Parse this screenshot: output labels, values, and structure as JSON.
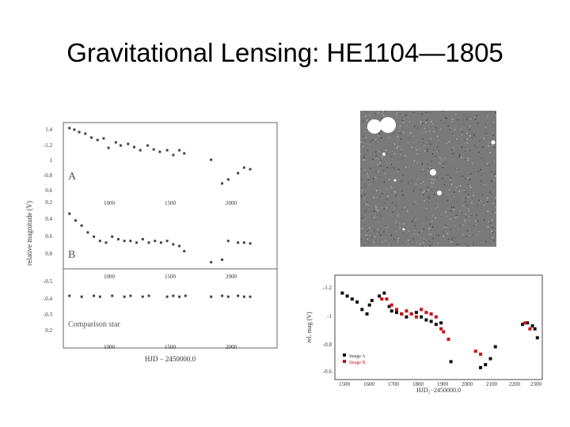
{
  "slide": {
    "title": "Gravitational Lensing: HE1104—1805"
  },
  "figure_left": {
    "ylabel": "relative magnitude (V)",
    "xlabel": "HJD − 2450000.0",
    "panel_a_label": "A",
    "panel_b_label": "B",
    "comparison_label": "Comparison star",
    "panel_a_ticks": [
      "1.4",
      "-1.2",
      "1",
      "-0.8",
      "0.6"
    ],
    "panel_b_ticks": [
      "0.2",
      "0.4",
      "0.6",
      "0.8"
    ],
    "panel_c_ticks": [
      "-0.5",
      "-0.4",
      "-0.3",
      "0.2"
    ],
    "xticks": [
      "1000",
      "1500",
      "2000"
    ]
  },
  "figure_right": {
    "ylabel": "rel. mag (V)",
    "xlabel": "HJD₂−2450000.0",
    "yticks": [
      "-1.2",
      "-1",
      "-0.8",
      "-0.6"
    ],
    "xticks": [
      "1500",
      "1600",
      "1700",
      "1800",
      "1900",
      "2000",
      "2100",
      "2200",
      "2300"
    ],
    "legend": [
      {
        "label": "Image A",
        "color": "#111111"
      },
      {
        "label": "Image B",
        "color": "#d01010"
      }
    ]
  },
  "chart_data": [
    {
      "type": "scatter",
      "title": "",
      "xlabel": "HJD − 2450000.0",
      "ylabel": "relative magnitude (V)",
      "xlim": [
        650,
        2400
      ],
      "series": [
        {
          "name": "A",
          "ylim": [
            -1.45,
            -0.55
          ],
          "x": [
            700,
            740,
            780,
            830,
            880,
            930,
            980,
            1020,
            1080,
            1120,
            1180,
            1230,
            1280,
            1340,
            1390,
            1440,
            1500,
            1550,
            1600,
            1640,
            1860,
            1950,
            2000,
            2080,
            2130,
            2180
          ],
          "y": [
            -1.4,
            -1.38,
            -1.35,
            -1.33,
            -1.28,
            -1.25,
            -1.27,
            -1.15,
            -1.22,
            -1.18,
            -1.2,
            -1.16,
            -1.12,
            -1.18,
            -1.13,
            -1.1,
            -1.12,
            -1.06,
            -1.12,
            -1.08,
            -1.0,
            -0.7,
            -0.75,
            -0.83,
            -0.9,
            -0.88
          ]
        },
        {
          "name": "B",
          "ylim": [
            0.12,
            0.9
          ],
          "x": [
            700,
            750,
            800,
            850,
            900,
            950,
            1000,
            1050,
            1100,
            1150,
            1200,
            1250,
            1300,
            1350,
            1400,
            1450,
            1500,
            1550,
            1600,
            1640,
            1860,
            1950,
            2000,
            2080,
            2130,
            2180
          ],
          "y": [
            0.28,
            0.36,
            0.42,
            0.5,
            0.55,
            0.6,
            0.62,
            0.55,
            0.58,
            0.6,
            0.6,
            0.62,
            0.58,
            0.62,
            0.6,
            0.62,
            0.6,
            0.64,
            0.66,
            0.72,
            0.85,
            0.82,
            0.6,
            0.62,
            0.62,
            0.63
          ]
        },
        {
          "name": "Comparison star",
          "ylim": [
            -0.58,
            0.15
          ],
          "x": [
            700,
            800,
            900,
            950,
            1050,
            1150,
            1200,
            1300,
            1350,
            1500,
            1550,
            1600,
            1650,
            1860,
            1950,
            2000,
            2080,
            2130,
            2180
          ],
          "y": [
            -0.41,
            -0.4,
            -0.41,
            -0.4,
            -0.41,
            -0.4,
            -0.41,
            -0.4,
            -0.41,
            -0.4,
            -0.41,
            -0.4,
            -0.41,
            -0.4,
            -0.41,
            -0.4,
            -0.41,
            -0.4,
            -0.4
          ]
        }
      ]
    },
    {
      "type": "scatter",
      "title": "",
      "xlabel": "HJD₂−2450000.0",
      "ylabel": "rel. mag (V)",
      "xlim": [
        1470,
        2310
      ],
      "ylim": [
        -1.28,
        -0.58
      ],
      "series": [
        {
          "name": "Image A",
          "x": [
            1500,
            1520,
            1540,
            1560,
            1580,
            1600,
            1610,
            1620,
            1650,
            1670,
            1690,
            1700,
            1720,
            1740,
            1760,
            1780,
            1800,
            1820,
            1840,
            1860,
            1880,
            1900,
            1940,
            2060,
            2080,
            2100,
            2120,
            2230,
            2250,
            2270,
            2280,
            2290
          ],
          "y": [
            -1.16,
            -1.14,
            -1.12,
            -1.1,
            -1.05,
            -1.02,
            -1.08,
            -1.11,
            -1.14,
            -1.16,
            -1.07,
            -1.04,
            -1.03,
            -1.02,
            -1.0,
            -1.02,
            -1.03,
            -1.0,
            -0.98,
            -0.97,
            -0.95,
            -0.96,
            -0.7,
            -0.66,
            -0.68,
            -0.72,
            -0.8,
            -0.95,
            -0.96,
            -0.94,
            -0.92,
            -0.86
          ]
        },
        {
          "name": "Image B",
          "x": [
            1660,
            1680,
            1700,
            1720,
            1740,
            1760,
            1780,
            1800,
            1820,
            1840,
            1860,
            1880,
            1900,
            1910,
            1930,
            2040,
            2060,
            2240,
            2260
          ],
          "y": [
            -1.12,
            -1.12,
            -1.08,
            -1.05,
            -1.02,
            -1.04,
            -1.02,
            -1.0,
            -1.05,
            -1.03,
            -1.02,
            -1.0,
            -0.92,
            -0.9,
            -0.85,
            -0.77,
            -0.75,
            -0.96,
            -0.92
          ]
        }
      ]
    }
  ]
}
